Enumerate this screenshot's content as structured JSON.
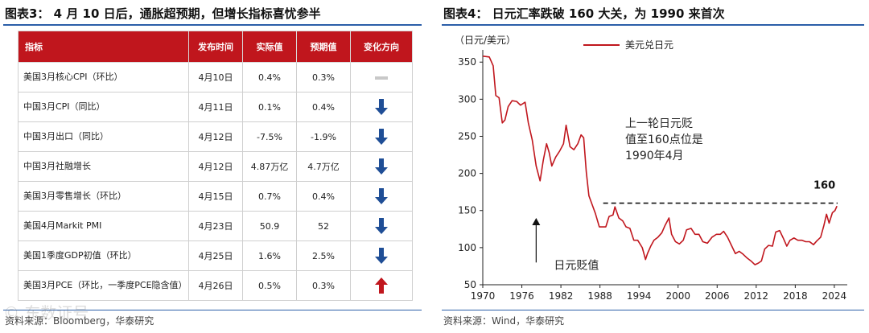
{
  "left_panel": {
    "title": "图表3： 4 月 10 日后，通胀超预期，但增长指标喜忧参半",
    "source": "资料来源：Bloomberg，华泰研究",
    "table": {
      "headers": [
        "指标",
        "发布时间",
        "实际值",
        "预期值",
        "变化方向"
      ],
      "rows": [
        {
          "indicator": "美国3月核心CPI（环比）",
          "date": "4月10日",
          "actual": "0.4%",
          "expected": "0.3%",
          "direction": "flat",
          "direction_color": "#c8c8c8"
        },
        {
          "indicator": "中国3月CPI（同比）",
          "date": "4月11日",
          "actual": "0.1%",
          "expected": "0.4%",
          "direction": "down",
          "direction_color": "#1f4e96"
        },
        {
          "indicator": "中国3月出口（同比）",
          "date": "4月12日",
          "actual": "-7.5%",
          "expected": "-1.9%",
          "direction": "down",
          "direction_color": "#1f4e96"
        },
        {
          "indicator": "中国3月社融增长",
          "date": "4月12日",
          "actual": "4.87万亿",
          "expected": "4.7万亿",
          "direction": "down",
          "direction_color": "#1f4e96"
        },
        {
          "indicator": "美国3月零售增长（环比）",
          "date": "4月15日",
          "actual": "0.7%",
          "expected": "0.4%",
          "direction": "down",
          "direction_color": "#1f4e96"
        },
        {
          "indicator": "美国4月Markit PMI",
          "date": "4月23日",
          "actual": "50.9",
          "expected": "52",
          "direction": "down",
          "direction_color": "#1f4e96"
        },
        {
          "indicator": "美国1季度GDP初值（环比）",
          "date": "4月25日",
          "actual": "1.6%",
          "expected": "2.5%",
          "direction": "down",
          "direction_color": "#1f4e96"
        },
        {
          "indicator": "美国3月PCE（环比，一季度PCE隐含值）",
          "date": "4月26日",
          "actual": "0.5%",
          "expected": "0.3%",
          "direction": "up",
          "direction_color": "#c0161d"
        }
      ]
    }
  },
  "right_panel": {
    "title": "图表4： 日元汇率跌破 160 大关，为 1990 来首次",
    "source": "资料来源：Wind，华泰研究",
    "chart_data": {
      "type": "line",
      "title": "",
      "ylabel": "（日元/美元）",
      "xlabel": "",
      "ylim": [
        50,
        360
      ],
      "xlim": [
        1970,
        2025
      ],
      "yticks": [
        50,
        100,
        150,
        200,
        250,
        300,
        350
      ],
      "xticks": [
        1970,
        1976,
        1982,
        1988,
        1994,
        2000,
        2006,
        2012,
        2018,
        2024
      ],
      "legend": "top-left",
      "grid": false,
      "series": [
        {
          "name": "美元兑日元",
          "color": "#c0161d",
          "x": [
            1970,
            1971.0,
            1971.6,
            1972.0,
            1972.5,
            1973.0,
            1973.4,
            1973.9,
            1974.5,
            1975.2,
            1975.8,
            1976.5,
            1977.0,
            1977.6,
            1978.2,
            1978.8,
            1979.3,
            1979.8,
            1980.2,
            1980.6,
            1981.2,
            1981.8,
            1982.4,
            1982.8,
            1983.4,
            1984.0,
            1984.6,
            1985.1,
            1985.5,
            1985.9,
            1986.3,
            1986.8,
            1987.3,
            1987.9,
            1988.4,
            1988.9,
            1989.4,
            1990.0,
            1990.3,
            1990.9,
            1991.5,
            1992.0,
            1992.6,
            1993.2,
            1993.8,
            1994.5,
            1995.0,
            1995.3,
            1995.8,
            1996.3,
            1996.9,
            1997.5,
            1998.0,
            1998.6,
            1999.0,
            1999.6,
            2000.2,
            2000.8,
            2001.3,
            2002.0,
            2002.6,
            2003.2,
            2003.8,
            2004.5,
            2005.2,
            2005.9,
            2006.5,
            2007.0,
            2007.6,
            2008.2,
            2008.8,
            2009.4,
            2010.0,
            2010.6,
            2011.2,
            2011.8,
            2012.3,
            2012.8,
            2013.3,
            2013.9,
            2014.5,
            2015.0,
            2015.6,
            2016.2,
            2016.7,
            2017.2,
            2017.8,
            2018.4,
            2019.0,
            2019.6,
            2020.2,
            2020.8,
            2021.3,
            2021.9,
            2022.4,
            2022.8,
            2023.2,
            2023.7,
            2024.1,
            2024.4
          ],
          "y": [
            358,
            357,
            345,
            305,
            302,
            268,
            272,
            290,
            298,
            297,
            292,
            296,
            268,
            245,
            210,
            190,
            218,
            240,
            228,
            210,
            222,
            230,
            240,
            265,
            236,
            232,
            240,
            252,
            248,
            202,
            170,
            158,
            146,
            128,
            128,
            128,
            142,
            144,
            155,
            140,
            136,
            128,
            126,
            110,
            110,
            100,
            84,
            92,
            102,
            110,
            114,
            120,
            130,
            140,
            118,
            108,
            105,
            110,
            124,
            126,
            118,
            118,
            108,
            106,
            114,
            118,
            118,
            122,
            114,
            103,
            92,
            95,
            91,
            86,
            82,
            77,
            79,
            82,
            98,
            103,
            102,
            121,
            123,
            112,
            102,
            110,
            113,
            110,
            110,
            108,
            108,
            104,
            109,
            114,
            130,
            145,
            133,
            147,
            150,
            156
          ]
        }
      ],
      "annotations": [
        {
          "text_lines": [
            "上一轮日元贬",
            "值至160点位是",
            "1990年4月"
          ],
          "target_x": 1990.3,
          "target_y": 160
        },
        {
          "text": "160",
          "x": 2024.4,
          "y": 160
        },
        {
          "text": "日元贬值",
          "arrow_x": 1978.2,
          "arrow_from_y": 80,
          "arrow_to_y": 140
        }
      ],
      "reference_line": {
        "y": 160,
        "from_x": 1988.5,
        "to_x": 2024.5,
        "style": "dashed"
      }
    }
  },
  "watermark": "© 东数证号"
}
